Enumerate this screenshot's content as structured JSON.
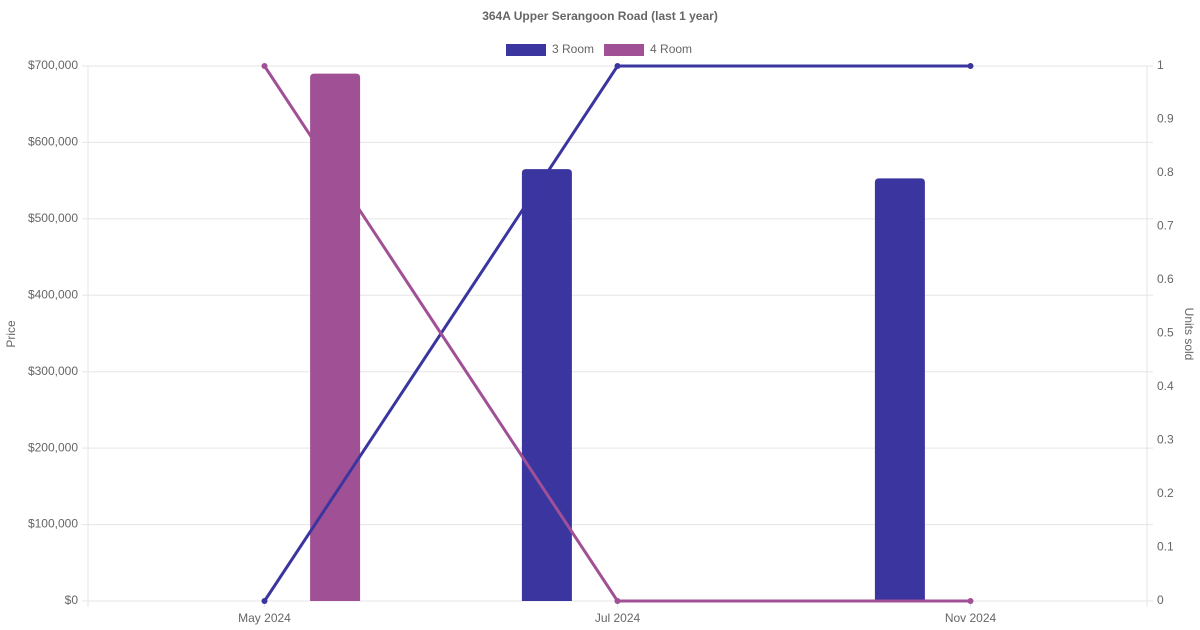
{
  "chart_data": {
    "type": "bar-line",
    "title": "364A Upper Serangoon Road (last 1 year)",
    "ylabel": "Price",
    "y2label": "Units sold",
    "categories": [
      "May 2024",
      "Jul 2024",
      "Nov 2024"
    ],
    "series": [
      {
        "name": "3 Room",
        "color": "#3b35a0",
        "values": [
          null,
          565000,
          553000
        ],
        "units": [
          0,
          1,
          1
        ]
      },
      {
        "name": "4 Room",
        "color": "#a05095",
        "values": [
          690000,
          null,
          null
        ],
        "units": [
          1,
          0,
          0
        ]
      }
    ],
    "ylim": [
      0,
      700000
    ],
    "yticks": [
      {
        "value": 0,
        "label": "$0"
      },
      {
        "value": 100000,
        "label": "$100,000"
      },
      {
        "value": 200000,
        "label": "$200,000"
      },
      {
        "value": 300000,
        "label": "$300,000"
      },
      {
        "value": 400000,
        "label": "$400,000"
      },
      {
        "value": 500000,
        "label": "$500,000"
      },
      {
        "value": 600000,
        "label": "$600,000"
      },
      {
        "value": 700000,
        "label": "$700,000"
      }
    ],
    "y2lim": [
      0,
      1
    ],
    "y2ticks": [
      0,
      0.1,
      0.2,
      0.3,
      0.4,
      0.5,
      0.6,
      0.7,
      0.8,
      0.9,
      1
    ],
    "grid": true,
    "legend": "top"
  }
}
